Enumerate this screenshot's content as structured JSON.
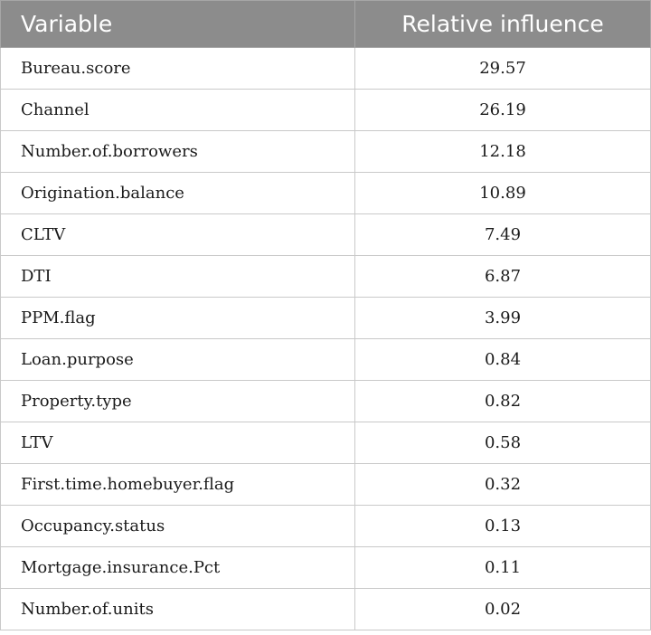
{
  "table": {
    "headers": {
      "variable": "Variable",
      "influence": "Relative influence"
    },
    "rows": [
      {
        "variable": "Bureau.score",
        "influence": "29.57"
      },
      {
        "variable": "Channel",
        "influence": "26.19"
      },
      {
        "variable": "Number.of.borrowers",
        "influence": "12.18"
      },
      {
        "variable": "Origination.balance",
        "influence": "10.89"
      },
      {
        "variable": "CLTV",
        "influence": "7.49"
      },
      {
        "variable": "DTI",
        "influence": "6.87"
      },
      {
        "variable": "PPM.flag",
        "influence": "3.99"
      },
      {
        "variable": "Loan.purpose",
        "influence": "0.84"
      },
      {
        "variable": "Property.type",
        "influence": "0.82"
      },
      {
        "variable": "LTV",
        "influence": "0.58"
      },
      {
        "variable": "First.time.homebuyer.flag",
        "influence": "0.32"
      },
      {
        "variable": "Occupancy.status",
        "influence": "0.13"
      },
      {
        "variable": "Mortgage.insurance.Pct",
        "influence": "0.11"
      },
      {
        "variable": "Number.of.units",
        "influence": "0.02"
      }
    ]
  }
}
